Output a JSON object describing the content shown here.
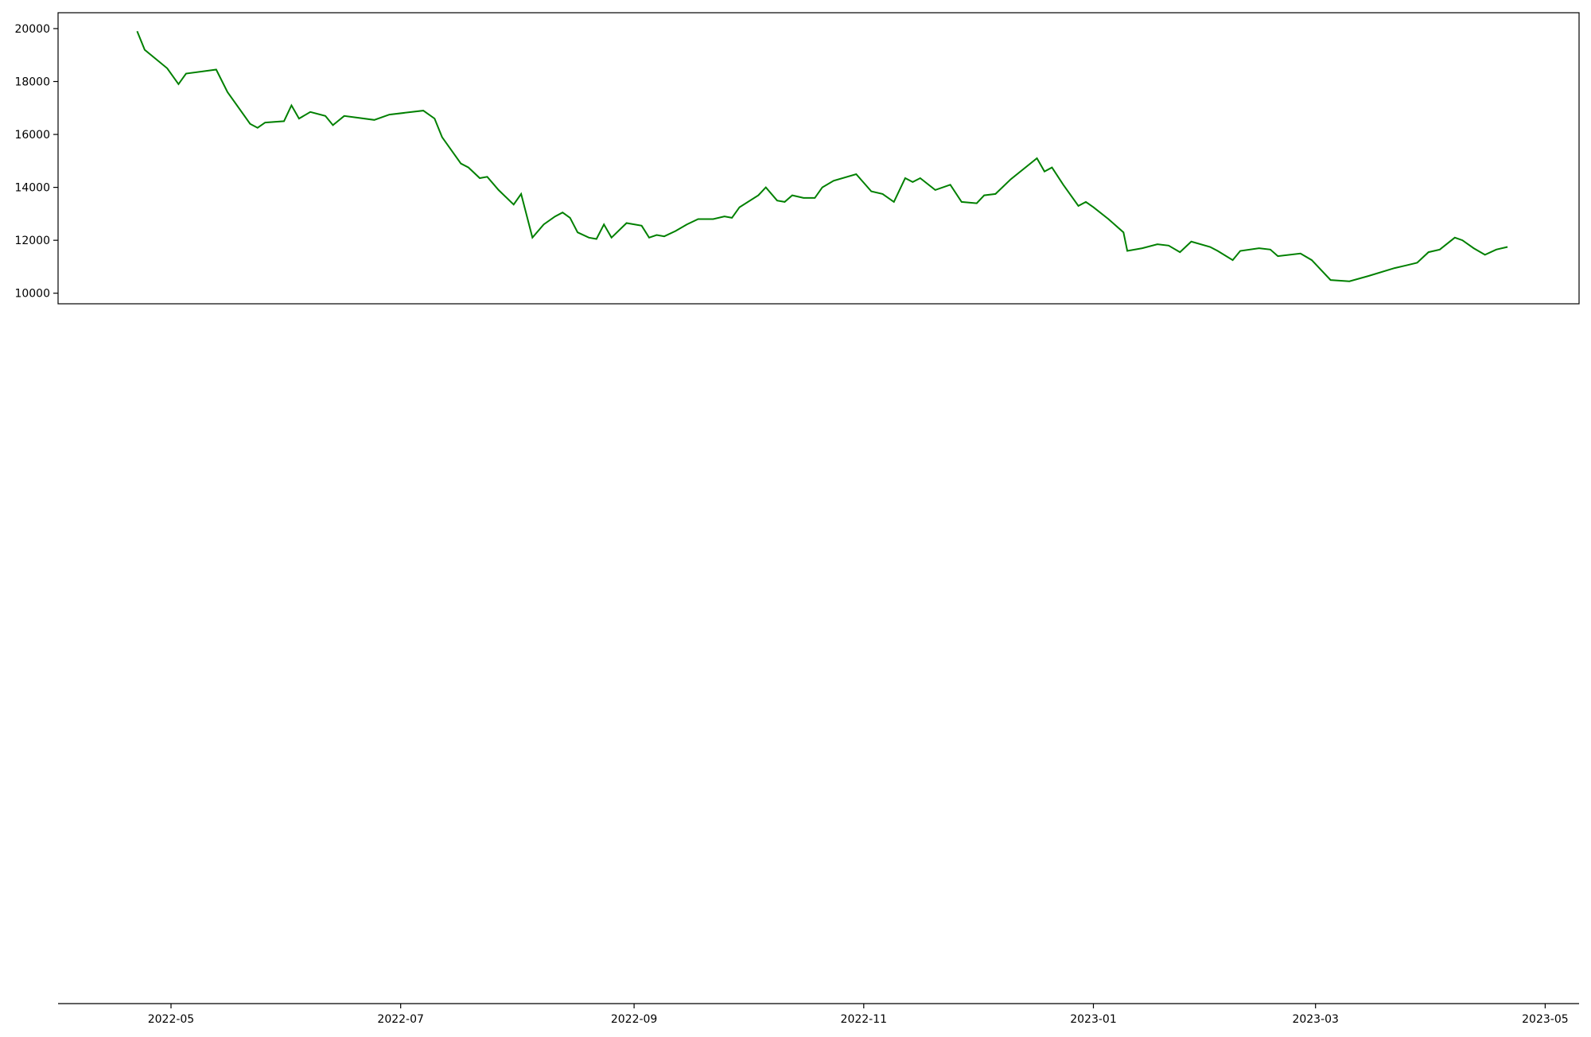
{
  "x_axis": {
    "ticks": [
      "2022-05",
      "2022-07",
      "2022-09",
      "2022-11",
      "2023-01",
      "2023-03",
      "2023-05"
    ],
    "date_range": [
      "2022-04-22",
      "2023-04-21"
    ],
    "xlim": [
      "2022-04-01",
      "2023-05-10"
    ]
  },
  "chart_data": [
    {
      "type": "line",
      "panel": "price",
      "ylim": [
        9600,
        20600
      ],
      "yticks": [
        "10000",
        "12000",
        "14000",
        "16000",
        "18000",
        "20000"
      ],
      "color": "#008000",
      "keypoints": [
        [
          "2022-04-22",
          19900
        ],
        [
          "2022-04-24",
          19200
        ],
        [
          "2022-04-30",
          18500
        ],
        [
          "2022-05-03",
          17900
        ],
        [
          "2022-05-05",
          18300
        ],
        [
          "2022-05-13",
          18450
        ],
        [
          "2022-05-16",
          17600
        ],
        [
          "2022-05-22",
          16400
        ],
        [
          "2022-05-24",
          16250
        ],
        [
          "2022-05-26",
          16450
        ],
        [
          "2022-05-31",
          16500
        ],
        [
          "2022-06-02",
          17100
        ],
        [
          "2022-06-04",
          16600
        ],
        [
          "2022-06-07",
          16850
        ],
        [
          "2022-06-11",
          16700
        ],
        [
          "2022-06-13",
          16350
        ],
        [
          "2022-06-16",
          16700
        ],
        [
          "2022-06-24",
          16550
        ],
        [
          "2022-06-28",
          16750
        ],
        [
          "2022-07-07",
          16900
        ],
        [
          "2022-07-10",
          16600
        ],
        [
          "2022-07-12",
          15900
        ],
        [
          "2022-07-17",
          14900
        ],
        [
          "2022-07-19",
          14750
        ],
        [
          "2022-07-22",
          14350
        ],
        [
          "2022-07-24",
          14400
        ],
        [
          "2022-07-27",
          13900
        ],
        [
          "2022-07-31",
          13350
        ],
        [
          "2022-08-02",
          13750
        ],
        [
          "2022-08-05",
          12100
        ],
        [
          "2022-08-08",
          12600
        ],
        [
          "2022-08-11",
          12900
        ],
        [
          "2022-08-13",
          13050
        ],
        [
          "2022-08-15",
          12850
        ],
        [
          "2022-08-17",
          12300
        ],
        [
          "2022-08-20",
          12100
        ],
        [
          "2022-08-22",
          12050
        ],
        [
          "2022-08-24",
          12600
        ],
        [
          "2022-08-26",
          12100
        ],
        [
          "2022-08-30",
          12650
        ],
        [
          "2022-09-03",
          12550
        ],
        [
          "2022-09-05",
          12100
        ],
        [
          "2022-09-07",
          12200
        ],
        [
          "2022-09-09",
          12150
        ],
        [
          "2022-09-12",
          12350
        ],
        [
          "2022-09-15",
          12600
        ],
        [
          "2022-09-18",
          12800
        ],
        [
          "2022-09-22",
          12800
        ],
        [
          "2022-09-25",
          12900
        ],
        [
          "2022-09-27",
          12850
        ],
        [
          "2022-09-29",
          13250
        ],
        [
          "2022-10-04",
          13700
        ],
        [
          "2022-10-06",
          14000
        ],
        [
          "2022-10-09",
          13500
        ],
        [
          "2022-10-11",
          13450
        ],
        [
          "2022-10-13",
          13700
        ],
        [
          "2022-10-16",
          13600
        ],
        [
          "2022-10-19",
          13600
        ],
        [
          "2022-10-21",
          14000
        ],
        [
          "2022-10-24",
          14250
        ],
        [
          "2022-10-30",
          14500
        ],
        [
          "2022-11-03",
          13850
        ],
        [
          "2022-11-06",
          13750
        ],
        [
          "2022-11-09",
          13450
        ],
        [
          "2022-11-12",
          14350
        ],
        [
          "2022-11-14",
          14200
        ],
        [
          "2022-11-16",
          14350
        ],
        [
          "2022-11-20",
          13900
        ],
        [
          "2022-11-24",
          14100
        ],
        [
          "2022-11-27",
          13450
        ],
        [
          "2022-12-01",
          13400
        ],
        [
          "2022-12-03",
          13700
        ],
        [
          "2022-12-06",
          13750
        ],
        [
          "2022-12-10",
          14300
        ],
        [
          "2022-12-17",
          15100
        ],
        [
          "2022-12-19",
          14600
        ],
        [
          "2022-12-21",
          14750
        ],
        [
          "2022-12-24",
          14100
        ],
        [
          "2022-12-28",
          13300
        ],
        [
          "2022-12-30",
          13450
        ],
        [
          "2023-01-01",
          13250
        ],
        [
          "2023-01-05",
          12800
        ],
        [
          "2023-01-09",
          12300
        ],
        [
          "2023-01-10",
          11600
        ],
        [
          "2023-01-14",
          11700
        ],
        [
          "2023-01-18",
          11850
        ],
        [
          "2023-01-21",
          11800
        ],
        [
          "2023-01-24",
          11550
        ],
        [
          "2023-01-27",
          11950
        ],
        [
          "2023-02-01",
          11750
        ],
        [
          "2023-02-03",
          11600
        ],
        [
          "2023-02-07",
          11250
        ],
        [
          "2023-02-09",
          11600
        ],
        [
          "2023-02-14",
          11700
        ],
        [
          "2023-02-17",
          11650
        ],
        [
          "2023-02-19",
          11400
        ],
        [
          "2023-02-25",
          11500
        ],
        [
          "2023-02-28",
          11250
        ],
        [
          "2023-03-05",
          10500
        ],
        [
          "2023-03-10",
          10450
        ],
        [
          "2023-03-15",
          10650
        ],
        [
          "2023-03-22",
          10950
        ],
        [
          "2023-03-25",
          11050
        ],
        [
          "2023-03-28",
          11150
        ],
        [
          "2023-03-31",
          11550
        ],
        [
          "2023-04-03",
          11650
        ],
        [
          "2023-04-07",
          12100
        ],
        [
          "2023-04-09",
          12000
        ],
        [
          "2023-04-12",
          11700
        ],
        [
          "2023-04-15",
          11450
        ],
        [
          "2023-04-18",
          11650
        ],
        [
          "2023-04-21",
          11750
        ]
      ]
    }
  ]
}
